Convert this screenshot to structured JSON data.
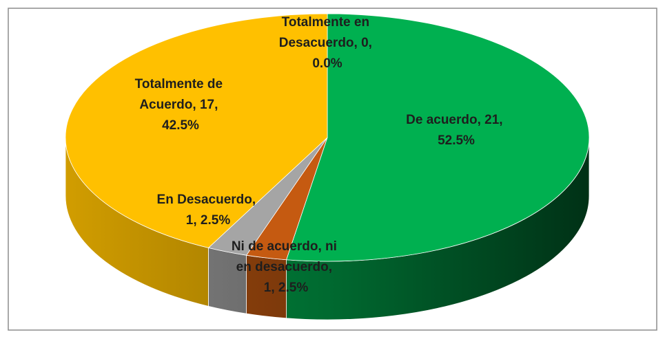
{
  "chart_data": {
    "type": "pie3d",
    "values": [
      0,
      21,
      1,
      1,
      17
    ],
    "value_labels": [
      "Totalmente en Desacuerdo, 0, 0.0%",
      "De acuerdo, 21, 52.5%",
      "Ni de acuerdo, ni en desacuerdo, 1, 2.5%",
      "En Desacuerdo, 1, 2.5%",
      "Totalmente de Acuerdo, 17, 42.5%"
    ],
    "colors": [
      "#5b9bd5",
      "#00b050",
      "#c55a11",
      "#a5a5a5",
      "#ffc000"
    ]
  }
}
